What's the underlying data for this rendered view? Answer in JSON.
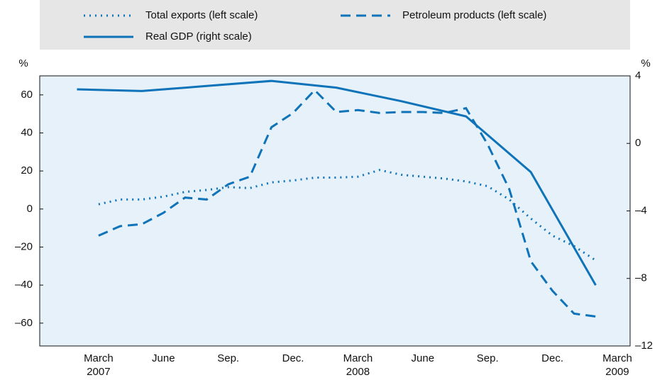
{
  "chart_data": {
    "type": "line",
    "categories": [
      null,
      null,
      "March 2007",
      null,
      null,
      "June",
      null,
      null,
      "Sep.",
      null,
      null,
      "Dec.",
      null,
      null,
      "March 2008",
      null,
      null,
      "June",
      null,
      null,
      "Sep.",
      null,
      null,
      "Dec.",
      null,
      null,
      "March 2009"
    ],
    "series": [
      {
        "name": "Total exports (left scale)",
        "color": "#0e73b8",
        "dash": "dotted",
        "values": [
          null,
          null,
          2.5,
          5,
          5,
          6.5,
          9,
          10,
          11.5,
          11,
          14,
          15,
          16.5,
          16.5,
          17,
          20.5,
          18,
          17,
          16,
          14.5,
          12,
          5,
          -5,
          -14,
          -19.5,
          -27,
          null
        ]
      },
      {
        "name": "Petroleum products (left scale)",
        "color": "#0e73b8",
        "dash": "dashed",
        "values": [
          null,
          null,
          -14,
          -9,
          -8,
          -2,
          6,
          5,
          13,
          17,
          43,
          50.5,
          62.5,
          51,
          52,
          50.5,
          51,
          51,
          50.5,
          53,
          34,
          10.5,
          -27.5,
          -43,
          -55,
          -56.5,
          null
        ]
      },
      {
        "name": "Real GDP (right scale)",
        "color": "#0e73b8",
        "dash": "solid",
        "axis": "y2",
        "values": [
          null,
          3.2,
          null,
          null,
          3.1,
          null,
          null,
          3.4,
          null,
          null,
          3.7,
          null,
          null,
          3.3,
          null,
          null,
          2.5,
          null,
          null,
          1.6,
          null,
          null,
          -1.7,
          null,
          null,
          -8.4,
          null
        ]
      }
    ],
    "ylabel": "%",
    "y2label": "%",
    "ylim": [
      -72,
      70
    ],
    "yticks": [
      {
        "value": -60,
        "label": "–60"
      },
      {
        "value": -40,
        "label": "–40"
      },
      {
        "value": -20,
        "label": "–20"
      },
      0,
      20,
      40,
      60
    ],
    "y2lim": [
      -12,
      4
    ],
    "y2ticks": [
      {
        "value": -12,
        "label": "–12"
      },
      {
        "value": -8,
        "label": "–8"
      },
      {
        "value": -4,
        "label": "–4"
      },
      0,
      4
    ]
  }
}
